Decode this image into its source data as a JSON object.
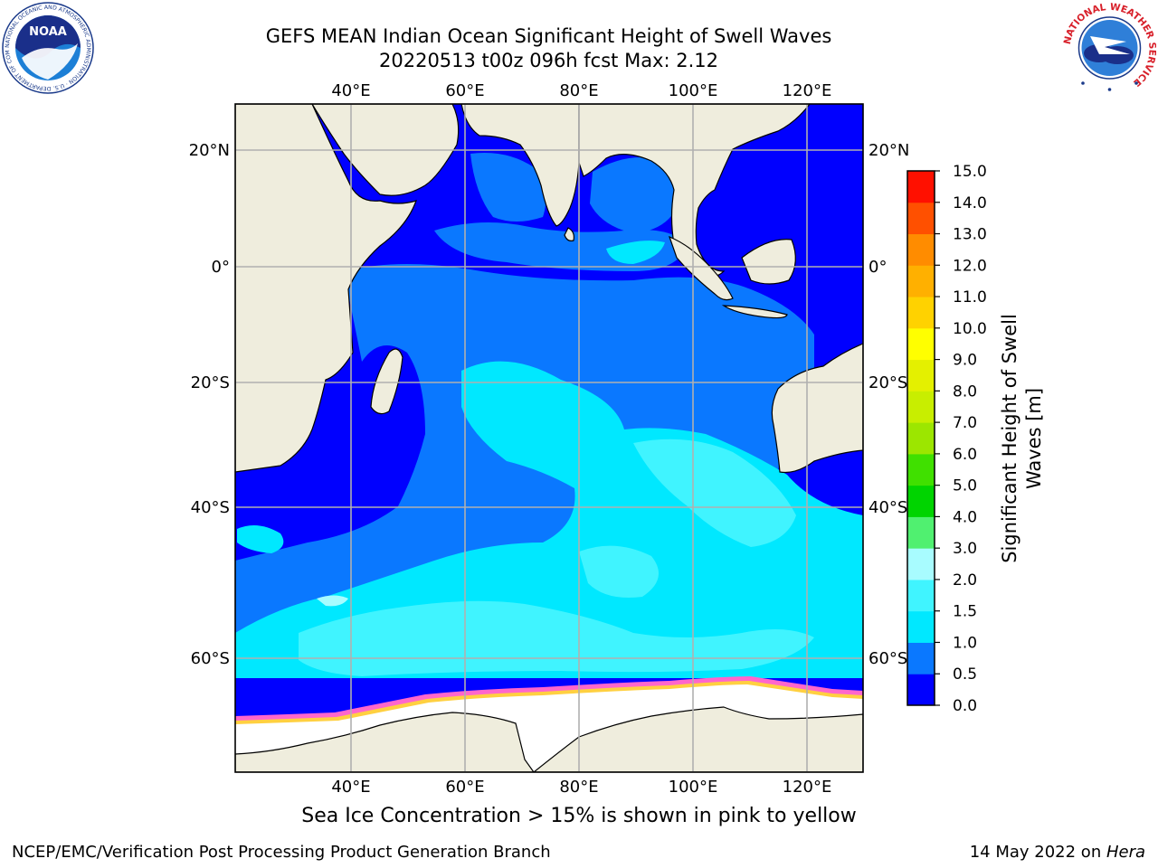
{
  "title_line1": "GEFS MEAN Indian Ocean Significant Height of Swell Waves",
  "title_line2": "20220513 t00z 096h fcst   Max: 2.12",
  "subtitle": "Sea Ice Concentration > 15% is shown in pink to yellow",
  "footer_left": "NCEP/EMC/Verification Post Processing Product Generation Branch",
  "footer_date": "14 May 2022 on ",
  "footer_machine": "Hera",
  "logos": {
    "noaa_text": "NOAA",
    "noaa_ring_text": "NATIONAL OCEANIC AND ATMOSPHERIC ADMINISTRATION · U.S. DEPARTMENT OF COMMERCE",
    "nws_ring_text": "NATIONAL WEATHER SERVICE"
  },
  "map": {
    "lon_ticks": [
      "40°E",
      "60°E",
      "80°E",
      "100°E",
      "120°E"
    ],
    "lon_values": [
      40,
      60,
      80,
      100,
      120
    ],
    "lat_ticks_left": [
      "20°N",
      "0°",
      "20°S",
      "40°S",
      "60°S"
    ],
    "lat_ticks_right": [
      "20°N",
      "0°",
      "20°S",
      "40°S",
      "60°S"
    ],
    "lat_values": [
      20,
      0,
      -20,
      -40,
      -60
    ]
  },
  "colorbar": {
    "label": "Significant Height of Swell Waves [m]",
    "label_line1": "Significant Height of Swell",
    "label_line2": "Waves [m]",
    "ticks": [
      "0.0",
      "0.5",
      "1.0",
      "1.5",
      "2.0",
      "3.0",
      "4.0",
      "5.0",
      "6.0",
      "7.0",
      "8.0",
      "9.0",
      "10.0",
      "11.0",
      "12.0",
      "13.0",
      "14.0",
      "15.0"
    ],
    "colors": [
      "#0000ff",
      "#0a78ff",
      "#00e8ff",
      "#40f4ff",
      "#a8fcff",
      "#50f070",
      "#00d400",
      "#40e000",
      "#9ce600",
      "#c8ee00",
      "#e4f000",
      "#ffff00",
      "#ffd200",
      "#ffb000",
      "#ff8c00",
      "#ff5000",
      "#ff1000"
    ]
  },
  "colors": {
    "land": "#efeddd",
    "sea_ice": "#ffffff",
    "ice_edge_pink": "#ff66cc",
    "ice_edge_yellow": "#ffd040",
    "grid": "#b0b0b0"
  }
}
